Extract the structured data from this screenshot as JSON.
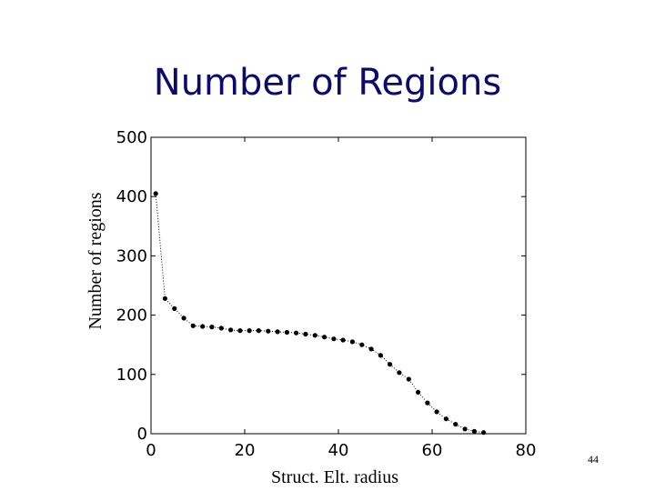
{
  "slide": {
    "title": "Number of Regions",
    "page_number": "44"
  },
  "chart_data": {
    "type": "line",
    "title": "",
    "xlabel": "Struct. Elt. radius",
    "ylabel": "Number of regions",
    "xlim": [
      0,
      80
    ],
    "ylim": [
      0,
      500
    ],
    "xticks": [
      0,
      20,
      40,
      60,
      80
    ],
    "yticks": [
      0,
      100,
      200,
      300,
      400,
      500
    ],
    "grid": false,
    "line_style": "dotted",
    "marker": "dot",
    "color": "#000000",
    "series": [
      {
        "x": [
          1,
          3,
          5,
          7,
          9,
          11,
          13,
          15,
          17,
          19,
          21,
          23,
          25,
          27,
          29,
          31,
          33,
          35,
          37,
          39,
          41,
          43,
          45,
          47,
          49,
          51,
          53,
          55,
          57,
          59,
          61,
          63,
          65,
          67,
          69,
          71
        ],
        "values": [
          405,
          228,
          211,
          195,
          182,
          181,
          180,
          178,
          175,
          174,
          174,
          174,
          173,
          172,
          171,
          170,
          168,
          166,
          163,
          160,
          158,
          155,
          150,
          143,
          132,
          117,
          103,
          92,
          70,
          52,
          37,
          25,
          16,
          8,
          4,
          2
        ]
      }
    ]
  }
}
